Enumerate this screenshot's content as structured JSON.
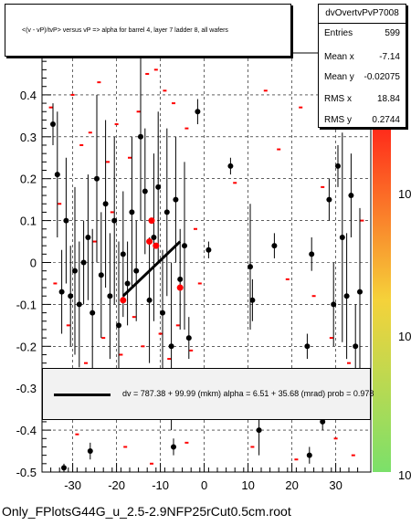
{
  "title": "<(v - vP)/tvP> versus   vP => alpha for barrel 4, layer 7 ladder 8, all wafers",
  "stats": {
    "name": "dvOvertvPvP7008",
    "rows": [
      {
        "label": "Entries",
        "value": "599"
      },
      {
        "label": "Mean x",
        "value": "-7.14"
      },
      {
        "label": "Mean y",
        "value": "-0.02075"
      },
      {
        "label": "RMS x",
        "value": "18.84"
      },
      {
        "label": "RMS y",
        "value": "0.2744"
      }
    ]
  },
  "fit_text": "dv =  787.38 + 99.99 (mkm) alpha =    6.51 + 35.68 (mrad) prob = 0.978",
  "footer": "Only_FPlotsG44G_u_2.5-2.9NFP25rCut0.5cm.root",
  "colors": {
    "points": "#000000",
    "highlight": "#ff0000",
    "scatter": "#ff0000",
    "palette_top": "#ff2a1a",
    "palette_mid": "#f5d23a",
    "palette_low": "#7be06a"
  },
  "chart_data": {
    "type": "scatter",
    "xlim": [
      -37,
      38
    ],
    "ylim": [
      -0.5,
      0.5
    ],
    "x_ticks": [
      -30,
      -20,
      -10,
      0,
      10,
      20,
      30
    ],
    "y_ticks": [
      -0.5,
      -0.4,
      -0.3,
      -0.2,
      -0.1,
      0,
      0.1,
      0.2,
      0.3,
      0.4
    ],
    "y_tick_labels": [
      "-0.5",
      "-0.4",
      "-0.3",
      "-0.2",
      "-0.1",
      "0",
      "0.1",
      "0.2",
      "0.3",
      "0.4"
    ],
    "z_labels": [
      "10",
      "10",
      "10"
    ],
    "grid": true,
    "fit_line": {
      "x": [
        -18.5,
        -5.5
      ],
      "y": [
        -0.08,
        0.05
      ]
    },
    "profile_points": [
      {
        "x": -34.5,
        "y": 0.33,
        "err": 0.05
      },
      {
        "x": -33.5,
        "y": 0.21,
        "err": 0.15
      },
      {
        "x": -32.5,
        "y": -0.07,
        "err": 0.1
      },
      {
        "x": -31.5,
        "y": 0.1,
        "err": 0.15
      },
      {
        "x": -30.5,
        "y": -0.08,
        "err": 0.12
      },
      {
        "x": -29.5,
        "y": -0.02,
        "err": 0.2
      },
      {
        "x": -28.5,
        "y": -0.1,
        "err": 0.15
      },
      {
        "x": -27.5,
        "y": 0.0,
        "err": 0.1
      },
      {
        "x": -26.5,
        "y": 0.06,
        "err": 0.15
      },
      {
        "x": -25.5,
        "y": -0.12,
        "err": 0.2
      },
      {
        "x": -24.5,
        "y": 0.2,
        "err": 0.2
      },
      {
        "x": -23.5,
        "y": -0.03,
        "err": 0.15
      },
      {
        "x": -22.5,
        "y": 0.14,
        "err": 0.2
      },
      {
        "x": -21.5,
        "y": -0.08,
        "err": 0.15
      },
      {
        "x": -20.5,
        "y": 0.1,
        "err": 0.2
      },
      {
        "x": -19.5,
        "y": -0.15,
        "err": 0.2
      },
      {
        "x": -18.5,
        "y": 0.02,
        "err": 0.15
      },
      {
        "x": -17.5,
        "y": -0.05,
        "err": 0.1
      },
      {
        "x": -16.5,
        "y": 0.12,
        "err": 0.18
      },
      {
        "x": -15.5,
        "y": -0.02,
        "err": 0.12
      },
      {
        "x": -14.5,
        "y": 0.3,
        "err": 0.2
      },
      {
        "x": -13.5,
        "y": 0.17,
        "err": 0.15
      },
      {
        "x": -12.5,
        "y": -0.09,
        "err": 0.15
      },
      {
        "x": -11.5,
        "y": 0.06,
        "err": 0.2
      },
      {
        "x": -10.5,
        "y": 0.18,
        "err": 0.18
      },
      {
        "x": -9.5,
        "y": -0.12,
        "err": 0.15
      },
      {
        "x": -8.5,
        "y": 0.12,
        "err": 0.2
      },
      {
        "x": -7.5,
        "y": -0.2,
        "err": 0.2
      },
      {
        "x": -6.5,
        "y": 0.15,
        "err": 0.15
      },
      {
        "x": -5.5,
        "y": -0.04,
        "err": 0.12
      },
      {
        "x": -4.5,
        "y": 0.04,
        "err": 0.2
      },
      {
        "x": -3.5,
        "y": -0.18,
        "err": 0.05
      },
      {
        "x": -1.5,
        "y": 0.36,
        "err": 0.03
      },
      {
        "x": 1.0,
        "y": 0.03,
        "err": 0.02
      },
      {
        "x": 6.0,
        "y": 0.23,
        "err": 0.02
      },
      {
        "x": 10.5,
        "y": -0.01,
        "err": 0.15
      },
      {
        "x": 11.0,
        "y": -0.09,
        "err": 0.05
      },
      {
        "x": 12.5,
        "y": -0.4,
        "err": 0.06
      },
      {
        "x": 16.0,
        "y": 0.04,
        "err": 0.03
      },
      {
        "x": 23.5,
        "y": -0.2,
        "err": 0.03
      },
      {
        "x": 24.5,
        "y": 0.02,
        "err": 0.04
      },
      {
        "x": 27.0,
        "y": -0.38,
        "err": 0.02
      },
      {
        "x": 28.5,
        "y": 0.15,
        "err": 0.05
      },
      {
        "x": 29.5,
        "y": -0.1,
        "err": 0.1
      },
      {
        "x": 30.5,
        "y": 0.23,
        "err": 0.05
      },
      {
        "x": 31.5,
        "y": 0.06,
        "err": 0.25
      },
      {
        "x": 32.5,
        "y": -0.08,
        "err": 0.15
      },
      {
        "x": 33.5,
        "y": 0.16,
        "err": 0.1
      },
      {
        "x": 34.5,
        "y": -0.2,
        "err": 0.1
      },
      {
        "x": 35.5,
        "y": -0.07,
        "err": 0.2
      },
      {
        "x": -26.0,
        "y": -0.45,
        "err": 0.02
      },
      {
        "x": -7.0,
        "y": -0.44,
        "err": 0.02
      },
      {
        "x": 24.0,
        "y": -0.46,
        "err": 0.02
      },
      {
        "x": -32.0,
        "y": -0.49,
        "err": 0.01
      }
    ],
    "highlight_points": [
      {
        "x": -12,
        "y": 0.1
      },
      {
        "x": -12.5,
        "y": 0.05
      },
      {
        "x": -11,
        "y": 0.04
      },
      {
        "x": -5.5,
        "y": -0.06
      },
      {
        "x": -18.5,
        "y": -0.09
      }
    ],
    "scatter_cells": [
      {
        "x": -35,
        "y": 0.37
      },
      {
        "x": -30,
        "y": 0.4
      },
      {
        "x": -28,
        "y": 0.28
      },
      {
        "x": -24,
        "y": 0.43
      },
      {
        "x": -20,
        "y": 0.33
      },
      {
        "x": -17,
        "y": 0.25
      },
      {
        "x": -13,
        "y": 0.45
      },
      {
        "x": -11,
        "y": 0.46
      },
      {
        "x": -9,
        "y": 0.41
      },
      {
        "x": -7,
        "y": 0.38
      },
      {
        "x": -4,
        "y": 0.32
      },
      {
        "x": -15,
        "y": 0.36
      },
      {
        "x": -22,
        "y": 0.24
      },
      {
        "x": -26,
        "y": 0.31
      },
      {
        "x": -33,
        "y": 0.14
      },
      {
        "x": -31,
        "y": -0.15
      },
      {
        "x": -27,
        "y": -0.24
      },
      {
        "x": -23,
        "y": -0.18
      },
      {
        "x": -19,
        "y": -0.22
      },
      {
        "x": -16,
        "y": -0.13
      },
      {
        "x": -14,
        "y": -0.2
      },
      {
        "x": -10,
        "y": -0.17
      },
      {
        "x": -8,
        "y": -0.23
      },
      {
        "x": -6,
        "y": -0.15
      },
      {
        "x": -3,
        "y": -0.21
      },
      {
        "x": -2,
        "y": 0.08
      },
      {
        "x": -1,
        "y": -0.05
      },
      {
        "x": 7,
        "y": 0.19
      },
      {
        "x": 14,
        "y": 0.41
      },
      {
        "x": 17,
        "y": 0.27
      },
      {
        "x": 19,
        "y": -0.04
      },
      {
        "x": 22,
        "y": 0.37
      },
      {
        "x": 25,
        "y": -0.08
      },
      {
        "x": 27,
        "y": 0.18
      },
      {
        "x": 29,
        "y": -0.18
      },
      {
        "x": 31,
        "y": 0.33
      },
      {
        "x": 33,
        "y": -0.24
      },
      {
        "x": 35,
        "y": 0.42
      },
      {
        "x": 36,
        "y": 0.1
      },
      {
        "x": 30,
        "y": -0.42
      },
      {
        "x": 21,
        "y": -0.47
      },
      {
        "x": -29,
        "y": -0.41
      },
      {
        "x": -18,
        "y": -0.44
      },
      {
        "x": -12,
        "y": -0.48
      },
      {
        "x": -4,
        "y": -0.43
      },
      {
        "x": 34,
        "y": -0.46
      },
      {
        "x": 11,
        "y": -0.44
      },
      {
        "x": -21,
        "y": 0.12
      },
      {
        "x": -25,
        "y": 0.05
      },
      {
        "x": -34,
        "y": -0.05
      }
    ]
  }
}
